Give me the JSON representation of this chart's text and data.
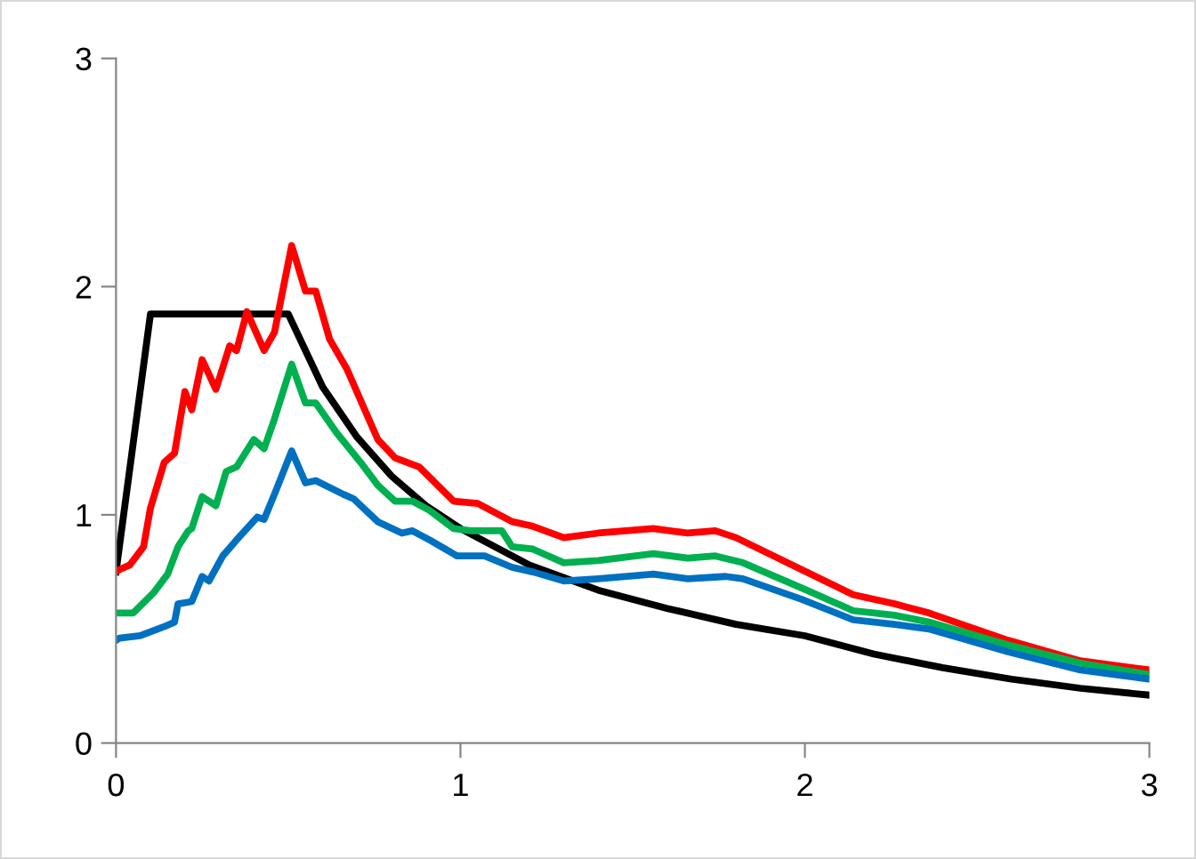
{
  "chart_data": {
    "type": "line",
    "xlim": [
      0,
      3
    ],
    "ylim": [
      0,
      3
    ],
    "xticks": [
      0,
      1,
      2,
      3
    ],
    "yticks": [
      0,
      1,
      2,
      3
    ],
    "grid": false,
    "legend": false,
    "marker": "none",
    "line_style": "solid",
    "series": [
      {
        "color": "#000000",
        "x": [
          0,
          0.1,
          0.5,
          0.6,
          0.7,
          0.8,
          0.9,
          1.0,
          1.2,
          1.4,
          1.6,
          1.8,
          2.0,
          2.2,
          2.4,
          2.6,
          2.8,
          3.0
        ],
        "values": [
          0.75,
          1.88,
          1.88,
          1.56,
          1.34,
          1.17,
          1.04,
          0.94,
          0.78,
          0.67,
          0.59,
          0.52,
          0.47,
          0.39,
          0.33,
          0.28,
          0.24,
          0.21
        ]
      },
      {
        "color": "#ff0000",
        "x": [
          0,
          0.01,
          0.04,
          0.08,
          0.1,
          0.14,
          0.17,
          0.2,
          0.22,
          0.25,
          0.29,
          0.33,
          0.35,
          0.38,
          0.43,
          0.46,
          0.51,
          0.55,
          0.58,
          0.62,
          0.67,
          0.76,
          0.81,
          0.88,
          0.98,
          1.05,
          1.15,
          1.21,
          1.3,
          1.4,
          1.56,
          1.66,
          1.74,
          1.8,
          1.99,
          2.14,
          2.26,
          2.36,
          2.59,
          2.8,
          3.0
        ],
        "values": [
          0.75,
          0.76,
          0.78,
          0.86,
          1.03,
          1.23,
          1.27,
          1.54,
          1.46,
          1.68,
          1.55,
          1.74,
          1.72,
          1.89,
          1.72,
          1.8,
          2.18,
          1.98,
          1.98,
          1.77,
          1.64,
          1.33,
          1.25,
          1.21,
          1.06,
          1.05,
          0.97,
          0.95,
          0.9,
          0.92,
          0.94,
          0.92,
          0.93,
          0.9,
          0.76,
          0.65,
          0.61,
          0.57,
          0.45,
          0.36,
          0.32
        ]
      },
      {
        "color": "#00b050",
        "x": [
          0,
          0.01,
          0.05,
          0.11,
          0.15,
          0.18,
          0.21,
          0.22,
          0.25,
          0.29,
          0.32,
          0.35,
          0.4,
          0.43,
          0.46,
          0.51,
          0.55,
          0.58,
          0.64,
          0.71,
          0.76,
          0.81,
          0.86,
          0.91,
          0.98,
          1.03,
          1.07,
          1.12,
          1.15,
          1.21,
          1.3,
          1.4,
          1.56,
          1.66,
          1.74,
          1.82,
          1.99,
          2.14,
          2.26,
          2.36,
          2.59,
          2.8,
          3.0
        ],
        "values": [
          0.57,
          0.57,
          0.57,
          0.66,
          0.74,
          0.86,
          0.93,
          0.94,
          1.08,
          1.04,
          1.19,
          1.21,
          1.33,
          1.29,
          1.42,
          1.66,
          1.49,
          1.49,
          1.36,
          1.23,
          1.13,
          1.06,
          1.06,
          1.02,
          0.94,
          0.93,
          0.93,
          0.93,
          0.86,
          0.85,
          0.79,
          0.8,
          0.83,
          0.81,
          0.82,
          0.79,
          0.68,
          0.58,
          0.56,
          0.53,
          0.43,
          0.35,
          0.3
        ]
      },
      {
        "color": "#0070c0",
        "x": [
          0,
          0.01,
          0.07,
          0.14,
          0.17,
          0.18,
          0.22,
          0.25,
          0.27,
          0.31,
          0.35,
          0.41,
          0.43,
          0.46,
          0.51,
          0.55,
          0.58,
          0.66,
          0.69,
          0.76,
          0.83,
          0.86,
          0.91,
          0.99,
          1.03,
          1.07,
          1.15,
          1.21,
          1.3,
          1.4,
          1.56,
          1.66,
          1.77,
          1.82,
          1.99,
          2.14,
          2.26,
          2.36,
          2.59,
          2.8,
          3.0
        ],
        "values": [
          0.45,
          0.46,
          0.47,
          0.51,
          0.53,
          0.61,
          0.62,
          0.73,
          0.71,
          0.82,
          0.89,
          0.99,
          0.98,
          1.09,
          1.28,
          1.14,
          1.15,
          1.09,
          1.07,
          0.97,
          0.92,
          0.93,
          0.89,
          0.82,
          0.82,
          0.82,
          0.77,
          0.75,
          0.71,
          0.72,
          0.74,
          0.72,
          0.73,
          0.72,
          0.63,
          0.54,
          0.52,
          0.5,
          0.4,
          0.32,
          0.28
        ]
      }
    ]
  }
}
